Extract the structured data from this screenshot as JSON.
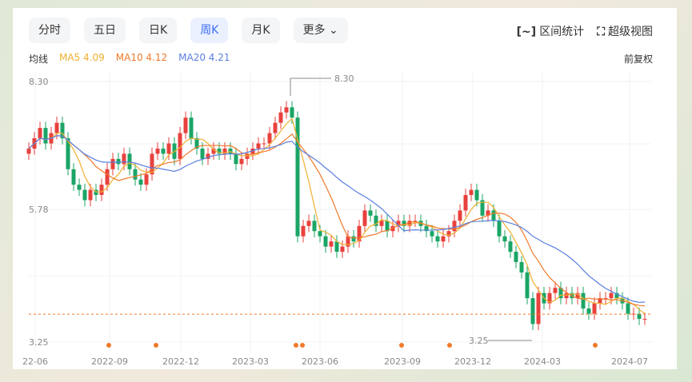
{
  "tabs": [
    "分时",
    "五日",
    "日K",
    "周K",
    "月K",
    "更多"
  ],
  "active_tab": "周K",
  "tools": {
    "range_stats": "区间统计",
    "super_view": "超级视图"
  },
  "ma": {
    "label": "均线",
    "ma5": "MA5 4.09",
    "ma10": "MA10 4.12",
    "ma20": "MA20 4.21"
  },
  "adjust": "前复权",
  "colors": {
    "up": "#e8413d",
    "down": "#1aa566",
    "ma5": "#f0b030",
    "ma10": "#f07a2a",
    "ma20": "#5b7fe0"
  },
  "chart_data": {
    "type": "candlestick",
    "y_labels": [
      "8.30",
      "5.78",
      "3.25"
    ],
    "ylim": [
      3.25,
      8.3
    ],
    "x_labels": [
      "22-06",
      "2022-09",
      "2022-12",
      "2023-03",
      "2023-06",
      "2023-09",
      "2023-12",
      "2024-03",
      "2024-07"
    ],
    "max_marker": "8.30",
    "min_marker": "3.25",
    "current_price_line": 3.79,
    "closes": [
      7.0,
      7.2,
      7.4,
      7.1,
      7.3,
      7.5,
      7.2,
      6.6,
      6.3,
      6.2,
      6.0,
      6.2,
      6.1,
      6.3,
      6.6,
      6.8,
      6.7,
      6.9,
      6.6,
      6.4,
      6.3,
      6.5,
      6.9,
      7.0,
      6.9,
      7.1,
      6.8,
      7.3,
      7.6,
      7.2,
      7.0,
      6.8,
      6.9,
      7.0,
      6.9,
      7.0,
      6.9,
      6.7,
      6.8,
      6.9,
      7.0,
      7.1,
      7.1,
      7.3,
      7.5,
      7.7,
      7.8,
      7.6,
      5.3,
      5.5,
      5.6,
      5.4,
      5.3,
      5.1,
      5.2,
      5.0,
      5.1,
      5.3,
      5.2,
      5.5,
      5.8,
      5.7,
      5.5,
      5.6,
      5.4,
      5.5,
      5.6,
      5.5,
      5.6,
      5.6,
      5.5,
      5.4,
      5.3,
      5.2,
      5.3,
      5.4,
      5.6,
      5.8,
      6.1,
      6.2,
      6.0,
      5.7,
      5.8,
      5.6,
      5.3,
      5.2,
      5.0,
      4.8,
      4.6,
      4.1,
      3.6,
      4.2,
      4.0,
      4.2,
      4.3,
      4.1,
      4.2,
      4.1,
      4.2,
      3.9,
      3.8,
      4.0,
      4.1,
      4.1,
      4.2,
      4.1,
      4.0,
      3.8,
      3.8,
      3.7,
      3.7
    ]
  }
}
